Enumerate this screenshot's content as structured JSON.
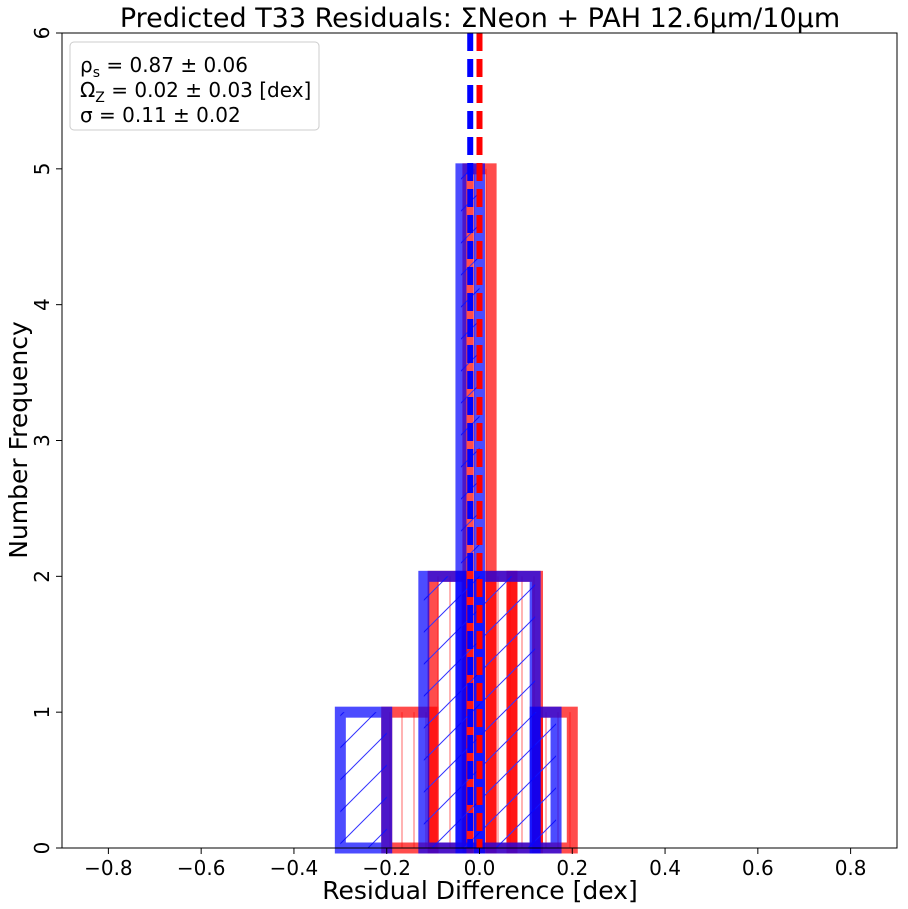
{
  "chart_data": {
    "type": "histogram",
    "title": "Predicted T33 Residuals: ΣNeon + PAH 12.6μm/10μm",
    "xlabel": "Residual Difference [dex]",
    "ylabel": "Number Frequency",
    "xlim": [
      -0.9,
      0.9
    ],
    "ylim": [
      0,
      6
    ],
    "xticks": [
      -0.8,
      -0.6,
      -0.4,
      -0.2,
      0.0,
      0.2,
      0.4,
      0.6,
      0.8
    ],
    "xtick_labels": [
      "−0.8",
      "−0.6",
      "−0.4",
      "−0.2",
      "0.0",
      "0.2",
      "0.4",
      "0.6",
      "0.8"
    ],
    "yticks": [
      0,
      1,
      2,
      3,
      4,
      5,
      6
    ],
    "ytick_labels": [
      "0",
      "1",
      "2",
      "3",
      "4",
      "5",
      "6"
    ],
    "grid": false,
    "series": [
      {
        "color": "#ff0000",
        "hatch": "vertical",
        "bins": [
          {
            "x0": -0.2,
            "x1": -0.1,
            "count": 1
          },
          {
            "x0": -0.1,
            "x1": -0.025,
            "count": 2
          },
          {
            "x0": -0.025,
            "x1": 0.025,
            "count": 5
          },
          {
            "x0": 0.025,
            "x1": 0.07,
            "count": 2
          },
          {
            "x0": 0.07,
            "x1": 0.125,
            "count": 2
          },
          {
            "x0": 0.125,
            "x1": 0.2,
            "count": 1
          }
        ],
        "median_line": 0.0
      },
      {
        "color": "#0000ff",
        "hatch": "diagonal",
        "bins": [
          {
            "x0": -0.3,
            "x1": -0.2,
            "count": 1
          },
          {
            "x0": -0.2,
            "x1": -0.12,
            "count": 0
          },
          {
            "x0": -0.12,
            "x1": -0.04,
            "count": 2
          },
          {
            "x0": -0.04,
            "x1": 0.0,
            "count": 5
          },
          {
            "x0": 0.0,
            "x1": 0.12,
            "count": 2
          },
          {
            "x0": 0.12,
            "x1": 0.165,
            "count": 1
          }
        ],
        "median_line": -0.02
      }
    ],
    "legend": {
      "placement": "upper-left",
      "lines": [
        {
          "text": "ρ",
          "sub": "s",
          "rest": " = 0.87 ± 0.06"
        },
        {
          "text": "Ω",
          "sub": "Z",
          "rest": " = 0.02 ± 0.03 [dex]"
        },
        {
          "text": "σ",
          "sub": "",
          "rest": " = 0.11 ± 0.02"
        }
      ]
    }
  }
}
